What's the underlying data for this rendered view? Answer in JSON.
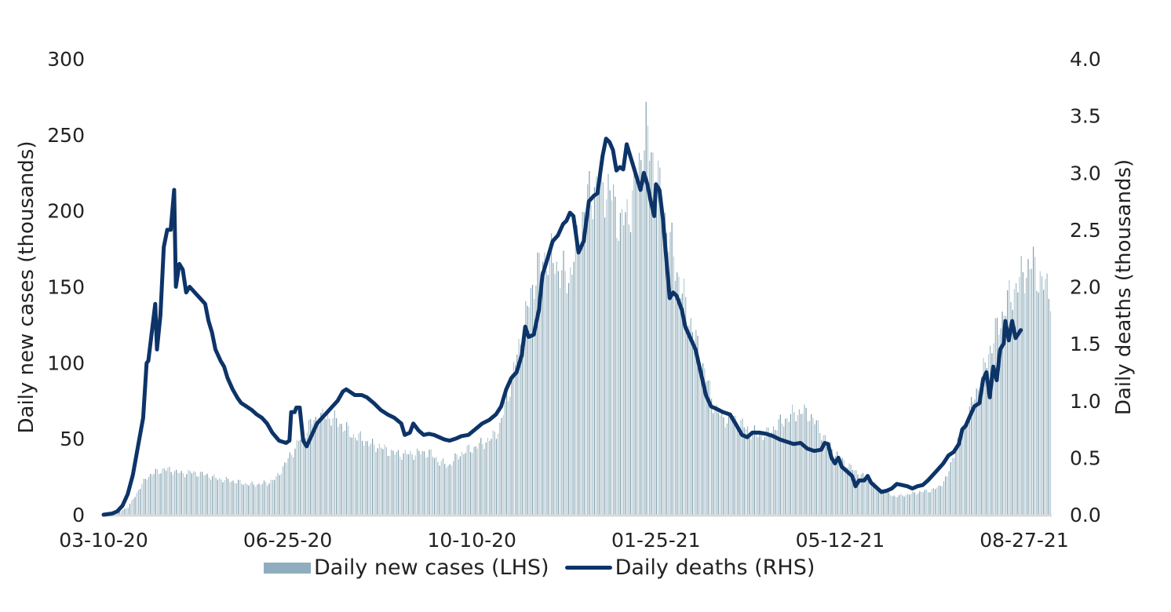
{
  "chart_data": {
    "type": "bar+line",
    "title": "",
    "xlabel": "",
    "ylabel_left": "Daily new cases (thousands)",
    "ylabel_right": "Daily deaths (thousands)",
    "ylim_left": [
      0,
      300
    ],
    "ylim_right": [
      0,
      4.0
    ],
    "yticks_left": [
      "0",
      "50",
      "100",
      "150",
      "200",
      "250",
      "300"
    ],
    "yticks_right": [
      "0.0",
      "0.5",
      "1.0",
      "1.5",
      "2.0",
      "2.5",
      "3.0",
      "3.5",
      "4.0"
    ],
    "xticks": [
      "03-10-20",
      "06-25-20",
      "10-10-20",
      "01-25-21",
      "05-12-21",
      "08-27-21"
    ],
    "xtick_days": [
      0,
      107,
      214,
      321,
      428,
      535
    ],
    "x_day_range": [
      0,
      550
    ],
    "grid": false,
    "legend_position": "bottom",
    "series": [
      {
        "name": "Daily new cases (LHS)",
        "axis": "left",
        "kind": "bar",
        "color": "#8fadbf",
        "points_day_value": [
          [
            0,
            0
          ],
          [
            7,
            1
          ],
          [
            14,
            5
          ],
          [
            21,
            18
          ],
          [
            25,
            25
          ],
          [
            30,
            28
          ],
          [
            35,
            30
          ],
          [
            40,
            29
          ],
          [
            45,
            27
          ],
          [
            50,
            28
          ],
          [
            55,
            27
          ],
          [
            60,
            26
          ],
          [
            65,
            24
          ],
          [
            70,
            23
          ],
          [
            75,
            22
          ],
          [
            80,
            21
          ],
          [
            85,
            20
          ],
          [
            90,
            20
          ],
          [
            95,
            21
          ],
          [
            100,
            24
          ],
          [
            105,
            33
          ],
          [
            110,
            42
          ],
          [
            115,
            52
          ],
          [
            120,
            60
          ],
          [
            125,
            64
          ],
          [
            130,
            65
          ],
          [
            135,
            62
          ],
          [
            140,
            57
          ],
          [
            145,
            52
          ],
          [
            150,
            50
          ],
          [
            155,
            46
          ],
          [
            160,
            45
          ],
          [
            165,
            42
          ],
          [
            170,
            40
          ],
          [
            175,
            40
          ],
          [
            180,
            40
          ],
          [
            185,
            41
          ],
          [
            190,
            40
          ],
          [
            195,
            35
          ],
          [
            200,
            32
          ],
          [
            205,
            38
          ],
          [
            210,
            42
          ],
          [
            215,
            44
          ],
          [
            220,
            47
          ],
          [
            225,
            50
          ],
          [
            230,
            58
          ],
          [
            235,
            80
          ],
          [
            240,
            105
          ],
          [
            245,
            130
          ],
          [
            250,
            155
          ],
          [
            255,
            168
          ],
          [
            260,
            170
          ],
          [
            265,
            160
          ],
          [
            270,
            155
          ],
          [
            275,
            180
          ],
          [
            280,
            205
          ],
          [
            285,
            215
          ],
          [
            290,
            218
          ],
          [
            295,
            210
          ],
          [
            300,
            190
          ],
          [
            305,
            200
          ],
          [
            310,
            225
          ],
          [
            315,
            250
          ],
          [
            320,
            230
          ],
          [
            325,
            200
          ],
          [
            330,
            175
          ],
          [
            335,
            150
          ],
          [
            340,
            130
          ],
          [
            345,
            110
          ],
          [
            350,
            90
          ],
          [
            355,
            70
          ],
          [
            360,
            63
          ],
          [
            365,
            64
          ],
          [
            370,
            60
          ],
          [
            375,
            55
          ],
          [
            380,
            53
          ],
          [
            385,
            53
          ],
          [
            390,
            58
          ],
          [
            395,
            62
          ],
          [
            400,
            66
          ],
          [
            405,
            68
          ],
          [
            410,
            66
          ],
          [
            415,
            58
          ],
          [
            420,
            48
          ],
          [
            425,
            40
          ],
          [
            430,
            35
          ],
          [
            435,
            30
          ],
          [
            440,
            26
          ],
          [
            445,
            22
          ],
          [
            450,
            18
          ],
          [
            455,
            14
          ],
          [
            460,
            12
          ],
          [
            465,
            13
          ],
          [
            470,
            14
          ],
          [
            475,
            15
          ],
          [
            480,
            16
          ],
          [
            485,
            18
          ],
          [
            490,
            25
          ],
          [
            495,
            45
          ],
          [
            500,
            58
          ],
          [
            505,
            75
          ],
          [
            510,
            90
          ],
          [
            515,
            110
          ],
          [
            520,
            125
          ],
          [
            525,
            140
          ],
          [
            530,
            150
          ],
          [
            535,
            160
          ],
          [
            540,
            165
          ],
          [
            545,
            152
          ],
          [
            550,
            148
          ]
        ]
      },
      {
        "name": "Daily deaths (RHS)",
        "axis": "right",
        "kind": "line",
        "color": "#0d3468",
        "points_day_value": [
          [
            0,
            0.0
          ],
          [
            5,
            0.01
          ],
          [
            8,
            0.03
          ],
          [
            11,
            0.08
          ],
          [
            14,
            0.18
          ],
          [
            17,
            0.35
          ],
          [
            20,
            0.6
          ],
          [
            23,
            0.85
          ],
          [
            25,
            1.33
          ],
          [
            26,
            1.35
          ],
          [
            28,
            1.6
          ],
          [
            30,
            1.85
          ],
          [
            31,
            1.45
          ],
          [
            33,
            1.75
          ],
          [
            35,
            2.35
          ],
          [
            37,
            2.5
          ],
          [
            39,
            2.5
          ],
          [
            41,
            2.85
          ],
          [
            42,
            2.0
          ],
          [
            44,
            2.2
          ],
          [
            46,
            2.15
          ],
          [
            48,
            1.95
          ],
          [
            50,
            2.0
          ],
          [
            53,
            1.95
          ],
          [
            56,
            1.9
          ],
          [
            59,
            1.85
          ],
          [
            61,
            1.7
          ],
          [
            63,
            1.6
          ],
          [
            65,
            1.45
          ],
          [
            68,
            1.35
          ],
          [
            70,
            1.3
          ],
          [
            72,
            1.2
          ],
          [
            75,
            1.1
          ],
          [
            78,
            1.02
          ],
          [
            80,
            0.98
          ],
          [
            83,
            0.95
          ],
          [
            86,
            0.92
          ],
          [
            89,
            0.88
          ],
          [
            92,
            0.85
          ],
          [
            95,
            0.8
          ],
          [
            98,
            0.72
          ],
          [
            102,
            0.65
          ],
          [
            106,
            0.63
          ],
          [
            108,
            0.65
          ],
          [
            109,
            0.9
          ],
          [
            111,
            0.9
          ],
          [
            112,
            0.94
          ],
          [
            114,
            0.94
          ],
          [
            116,
            0.65
          ],
          [
            118,
            0.6
          ],
          [
            121,
            0.7
          ],
          [
            124,
            0.8
          ],
          [
            127,
            0.85
          ],
          [
            130,
            0.9
          ],
          [
            133,
            0.95
          ],
          [
            136,
            1.0
          ],
          [
            139,
            1.08
          ],
          [
            141,
            1.1
          ],
          [
            143,
            1.08
          ],
          [
            146,
            1.05
          ],
          [
            150,
            1.05
          ],
          [
            153,
            1.03
          ],
          [
            157,
            0.98
          ],
          [
            161,
            0.92
          ],
          [
            165,
            0.88
          ],
          [
            169,
            0.85
          ],
          [
            173,
            0.8
          ],
          [
            175,
            0.7
          ],
          [
            178,
            0.72
          ],
          [
            180,
            0.8
          ],
          [
            183,
            0.74
          ],
          [
            186,
            0.7
          ],
          [
            189,
            0.71
          ],
          [
            192,
            0.7
          ],
          [
            195,
            0.68
          ],
          [
            198,
            0.66
          ],
          [
            201,
            0.65
          ],
          [
            205,
            0.67
          ],
          [
            208,
            0.69
          ],
          [
            212,
            0.7
          ],
          [
            216,
            0.75
          ],
          [
            220,
            0.8
          ],
          [
            224,
            0.83
          ],
          [
            228,
            0.88
          ],
          [
            231,
            0.95
          ],
          [
            234,
            1.1
          ],
          [
            237,
            1.2
          ],
          [
            240,
            1.25
          ],
          [
            243,
            1.4
          ],
          [
            245,
            1.65
          ],
          [
            247,
            1.56
          ],
          [
            250,
            1.58
          ],
          [
            253,
            1.8
          ],
          [
            255,
            2.1
          ],
          [
            258,
            2.25
          ],
          [
            261,
            2.4
          ],
          [
            264,
            2.45
          ],
          [
            267,
            2.55
          ],
          [
            269,
            2.58
          ],
          [
            271,
            2.65
          ],
          [
            273,
            2.62
          ],
          [
            276,
            2.3
          ],
          [
            279,
            2.4
          ],
          [
            282,
            2.75
          ],
          [
            285,
            2.8
          ],
          [
            287,
            2.82
          ],
          [
            290,
            3.15
          ],
          [
            292,
            3.3
          ],
          [
            294,
            3.27
          ],
          [
            296,
            3.2
          ],
          [
            298,
            3.02
          ],
          [
            300,
            3.05
          ],
          [
            302,
            3.03
          ],
          [
            304,
            3.25
          ],
          [
            307,
            3.1
          ],
          [
            310,
            2.95
          ],
          [
            312,
            2.85
          ],
          [
            314,
            3.0
          ],
          [
            316,
            2.9
          ],
          [
            318,
            2.75
          ],
          [
            320,
            2.62
          ],
          [
            321,
            2.9
          ],
          [
            323,
            2.85
          ],
          [
            325,
            2.6
          ],
          [
            327,
            2.25
          ],
          [
            329,
            1.9
          ],
          [
            331,
            1.95
          ],
          [
            333,
            1.92
          ],
          [
            336,
            1.8
          ],
          [
            338,
            1.65
          ],
          [
            341,
            1.55
          ],
          [
            344,
            1.45
          ],
          [
            347,
            1.25
          ],
          [
            350,
            1.05
          ],
          [
            353,
            0.95
          ],
          [
            356,
            0.93
          ],
          [
            360,
            0.9
          ],
          [
            364,
            0.88
          ],
          [
            368,
            0.78
          ],
          [
            371,
            0.7
          ],
          [
            374,
            0.68
          ],
          [
            377,
            0.72
          ],
          [
            381,
            0.72
          ],
          [
            385,
            0.71
          ],
          [
            389,
            0.69
          ],
          [
            393,
            0.66
          ],
          [
            397,
            0.64
          ],
          [
            401,
            0.62
          ],
          [
            405,
            0.63
          ],
          [
            409,
            0.58
          ],
          [
            413,
            0.56
          ],
          [
            417,
            0.57
          ],
          [
            419,
            0.63
          ],
          [
            421,
            0.62
          ],
          [
            423,
            0.5
          ],
          [
            425,
            0.45
          ],
          [
            427,
            0.5
          ],
          [
            429,
            0.42
          ],
          [
            432,
            0.38
          ],
          [
            435,
            0.34
          ],
          [
            437,
            0.25
          ],
          [
            439,
            0.3
          ],
          [
            442,
            0.3
          ],
          [
            444,
            0.34
          ],
          [
            446,
            0.28
          ],
          [
            449,
            0.24
          ],
          [
            452,
            0.2
          ],
          [
            455,
            0.21
          ],
          [
            458,
            0.23
          ],
          [
            461,
            0.27
          ],
          [
            464,
            0.26
          ],
          [
            467,
            0.25
          ],
          [
            470,
            0.23
          ],
          [
            473,
            0.25
          ],
          [
            476,
            0.26
          ],
          [
            479,
            0.3
          ],
          [
            482,
            0.35
          ],
          [
            485,
            0.4
          ],
          [
            488,
            0.45
          ],
          [
            491,
            0.52
          ],
          [
            494,
            0.55
          ],
          [
            497,
            0.62
          ],
          [
            499,
            0.75
          ],
          [
            501,
            0.78
          ],
          [
            503,
            0.85
          ],
          [
            506,
            0.95
          ],
          [
            509,
            0.98
          ],
          [
            511,
            1.18
          ],
          [
            513,
            1.25
          ],
          [
            515,
            1.03
          ],
          [
            517,
            1.3
          ],
          [
            519,
            1.18
          ],
          [
            521,
            1.45
          ],
          [
            523,
            1.5
          ],
          [
            524,
            1.7
          ],
          [
            526,
            1.53
          ],
          [
            528,
            1.7
          ],
          [
            530,
            1.55
          ],
          [
            533,
            1.62
          ]
        ]
      }
    ]
  },
  "legend": {
    "cases_label": "Daily new cases (LHS)",
    "deaths_label": "Daily deaths (RHS)",
    "cases_color": "#8fadbf",
    "deaths_color": "#0d3468"
  }
}
